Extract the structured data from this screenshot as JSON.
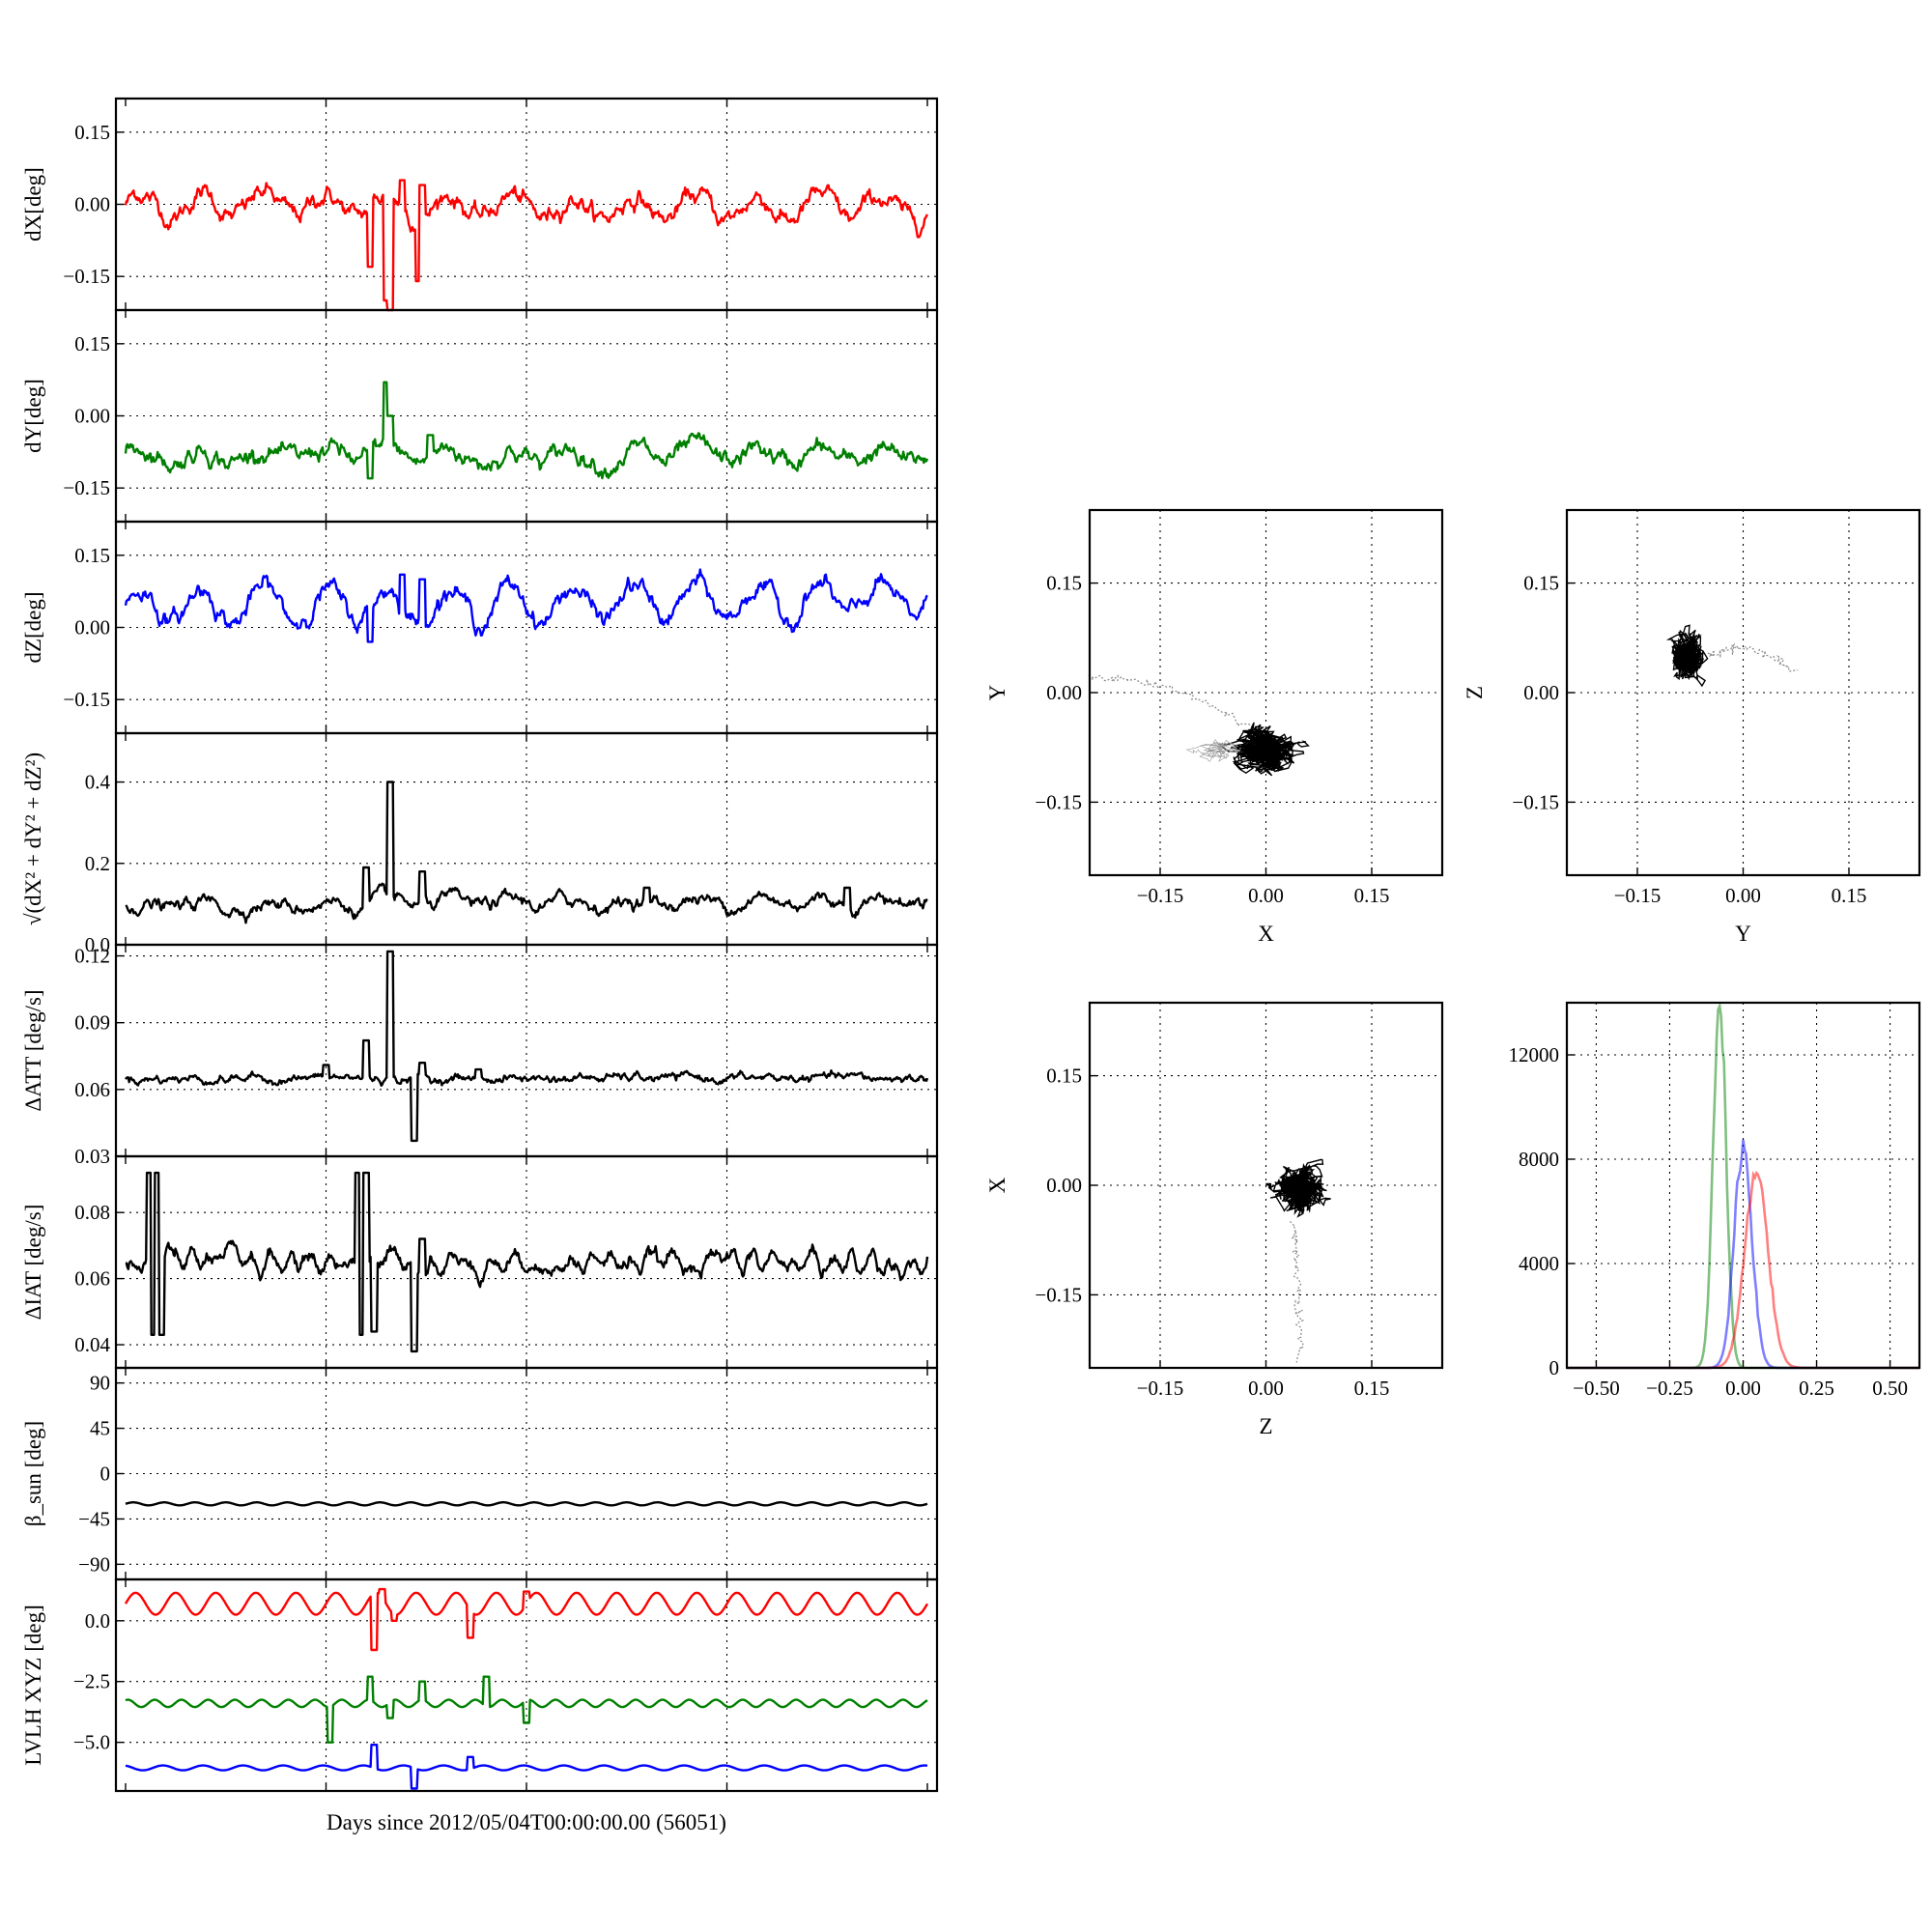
{
  "figure": {
    "background": "#ffffff",
    "colors": {
      "x": "#ff0000",
      "y": "#008000",
      "z": "#0000ff",
      "k": "#000000"
    }
  },
  "chart_data": [
    {
      "id": "ts-dx",
      "type": "line",
      "ylabel": "dX[deg]",
      "ylim": [
        -0.22,
        0.22
      ],
      "yticks": [
        0.15,
        0.0,
        -0.15
      ],
      "ytick_labels": [
        "0.15",
        "0.00",
        "−0.15"
      ],
      "xlim": [
        0,
        1
      ],
      "series": [
        {
          "color": "#ff0000",
          "mean": 0.0,
          "drift": -0.01,
          "wave_amp": 0.025,
          "wave_cycles": 13,
          "noise": 0.006,
          "spikes": [
            [
              0.305,
              -0.13
            ],
            [
              0.325,
              -0.2
            ],
            [
              0.33,
              -0.22
            ],
            [
              0.345,
              0.05
            ],
            [
              0.365,
              -0.16
            ],
            [
              0.37,
              0.04
            ]
          ]
        }
      ]
    },
    {
      "id": "ts-dy",
      "type": "line",
      "ylabel": "dY[deg]",
      "ylim": [
        -0.22,
        0.22
      ],
      "yticks": [
        0.15,
        0.0,
        -0.15
      ],
      "ytick_labels": [
        "0.15",
        "0.00",
        "−0.15"
      ],
      "xlim": [
        0,
        1
      ],
      "series": [
        {
          "color": "#008000",
          "mean": -0.08,
          "drift": -0.005,
          "wave_amp": 0.015,
          "wave_cycles": 13,
          "noise": 0.006,
          "spikes": [
            [
              0.305,
              -0.13
            ],
            [
              0.325,
              0.07
            ],
            [
              0.33,
              0.0
            ],
            [
              0.38,
              -0.04
            ]
          ]
        }
      ]
    },
    {
      "id": "ts-dz",
      "type": "line",
      "ylabel": "dZ[deg]",
      "ylim": [
        -0.22,
        0.22
      ],
      "yticks": [
        0.15,
        0.0,
        -0.15
      ],
      "ytick_labels": [
        "0.15",
        "0.00",
        "−0.15"
      ],
      "xlim": [
        0,
        1
      ],
      "series": [
        {
          "color": "#0000ff",
          "mean": 0.045,
          "drift": 0.01,
          "wave_amp": 0.035,
          "wave_cycles": 13,
          "noise": 0.006,
          "spikes": [
            [
              0.305,
              -0.03
            ],
            [
              0.345,
              0.11
            ],
            [
              0.37,
              0.1
            ]
          ]
        }
      ]
    },
    {
      "id": "ts-norm",
      "type": "line",
      "ylabel": "√(dX² + dY² + dZ²)",
      "ylim": [
        0.0,
        0.52
      ],
      "yticks": [
        0.4,
        0.2,
        0.0
      ],
      "ytick_labels": [
        "0.4",
        "0.2",
        "0.0"
      ],
      "xlim": [
        0,
        1
      ],
      "series": [
        {
          "color": "#000000",
          "mean": 0.095,
          "drift": 0.015,
          "wave_amp": 0.008,
          "wave_cycles": 13,
          "noise": 0.005,
          "spikes": [
            [
              0.3,
              0.19
            ],
            [
              0.33,
              0.4
            ],
            [
              0.37,
              0.18
            ],
            [
              0.65,
              0.14
            ],
            [
              0.9,
              0.14
            ]
          ]
        }
      ]
    },
    {
      "id": "ts-datt",
      "type": "line",
      "ylabel": "ΔATT [deg/s]",
      "ylim": [
        0.03,
        0.125
      ],
      "yticks": [
        0.12,
        0.09,
        0.06,
        0.03
      ],
      "ytick_labels": [
        "0.12",
        "0.09",
        "0.06",
        "0.03"
      ],
      "xlim": [
        0,
        1
      ],
      "series": [
        {
          "color": "#000000",
          "mean": 0.065,
          "drift": 0.0,
          "wave_amp": 0.0,
          "wave_cycles": 0,
          "noise": 0.0006,
          "spikes": [
            [
              0.25,
              0.071
            ],
            [
              0.3,
              0.082
            ],
            [
              0.33,
              0.122
            ],
            [
              0.36,
              0.037
            ],
            [
              0.37,
              0.072
            ],
            [
              0.44,
              0.069
            ]
          ]
        }
      ]
    },
    {
      "id": "ts-diat",
      "type": "line",
      "ylabel": "ΔIAT [deg/s]",
      "ylim": [
        0.033,
        0.097
      ],
      "yticks": [
        0.08,
        0.06,
        0.04
      ],
      "ytick_labels": [
        "0.08",
        "0.06",
        "0.04"
      ],
      "xlim": [
        0,
        1
      ],
      "series": [
        {
          "color": "#000000",
          "mean": 0.065,
          "drift": 0.0,
          "wave_amp": 0.002,
          "wave_cycles": 40,
          "noise": 0.0008,
          "spikes": [
            [
              0.03,
              0.092
            ],
            [
              0.035,
              0.043
            ],
            [
              0.04,
              0.092
            ],
            [
              0.045,
              0.043
            ],
            [
              0.29,
              0.092
            ],
            [
              0.295,
              0.043
            ],
            [
              0.3,
              0.092
            ],
            [
              0.31,
              0.044
            ],
            [
              0.36,
              0.038
            ],
            [
              0.37,
              0.072
            ]
          ]
        }
      ]
    },
    {
      "id": "ts-beta",
      "type": "line",
      "ylabel": "β_sun [deg]",
      "ylim": [
        -105,
        105
      ],
      "yticks": [
        90,
        45,
        0,
        -45,
        -90
      ],
      "ytick_labels": [
        "90",
        "45",
        "0",
        "−45",
        "−90"
      ],
      "xlim": [
        0,
        1
      ],
      "series": [
        {
          "color": "#000000",
          "mean": -30,
          "drift": 0.0,
          "wave_amp": 1.5,
          "wave_cycles": 26,
          "noise": 0.0,
          "spikes": []
        }
      ]
    },
    {
      "id": "ts-lvlh",
      "type": "line",
      "ylabel": "LVLH XYZ [deg]",
      "ylim": [
        -7.0,
        1.7
      ],
      "yticks": [
        0.0,
        -2.5,
        -5.0
      ],
      "ytick_labels": [
        "0.0",
        "−2.5",
        "−5.0"
      ],
      "xlim": [
        0,
        1
      ],
      "xlabel": "Days since 2012/05/04T00:00:00.00 (56051)",
      "series": [
        {
          "color": "#ff0000",
          "mean": 0.7,
          "drift": 0.0,
          "wave_amp": 0.45,
          "wave_cycles": 20,
          "noise": 0.0,
          "spikes": [
            [
              0.31,
              -1.2
            ],
            [
              0.32,
              1.3
            ],
            [
              0.335,
              0.0
            ],
            [
              0.43,
              -0.7
            ],
            [
              0.5,
              1.2
            ]
          ]
        },
        {
          "color": "#008000",
          "mean": -3.4,
          "drift": 0.0,
          "wave_amp": 0.15,
          "wave_cycles": 30,
          "noise": 0.0,
          "spikes": [
            [
              0.255,
              -5.0
            ],
            [
              0.305,
              -2.3
            ],
            [
              0.33,
              -4.0
            ],
            [
              0.37,
              -2.5
            ],
            [
              0.45,
              -2.3
            ],
            [
              0.5,
              -4.2
            ]
          ]
        },
        {
          "color": "#0000ff",
          "mean": -6.05,
          "drift": 0.0,
          "wave_amp": 0.1,
          "wave_cycles": 20,
          "noise": 0.0,
          "spikes": [
            [
              0.31,
              -5.1
            ],
            [
              0.36,
              -6.9
            ],
            [
              0.43,
              -5.6
            ]
          ]
        }
      ]
    },
    {
      "id": "sc-xy",
      "type": "scatter",
      "xlabel": "X",
      "ylabel": "Y",
      "xlim": [
        -0.25,
        0.25
      ],
      "ylim": [
        -0.25,
        0.25
      ],
      "ticks": [
        0.15,
        0.0,
        -0.15
      ],
      "tick_labels": [
        "0.15",
        "0.00",
        "−0.15"
      ],
      "clusters": [
        {
          "center": [
            0.0,
            -0.08
          ],
          "spread": [
            0.04,
            0.025
          ],
          "count": 900,
          "color": "#000000"
        },
        {
          "center": [
            -0.08,
            -0.08
          ],
          "spread": [
            0.04,
            0.02
          ],
          "count": 120,
          "color": "#999999"
        }
      ],
      "trail": {
        "from": [
          -0.25,
          0.02
        ],
        "to": [
          -0.02,
          -0.05
        ],
        "color": "#888888"
      }
    },
    {
      "id": "sc-yz",
      "type": "scatter",
      "xlabel": "Y",
      "ylabel": "Z",
      "xlim": [
        -0.25,
        0.25
      ],
      "ylim": [
        -0.25,
        0.25
      ],
      "ticks": [
        0.15,
        0.0,
        -0.15
      ],
      "tick_labels": [
        "0.15",
        "0.00",
        "−0.15"
      ],
      "clusters": [
        {
          "center": [
            -0.08,
            0.05
          ],
          "spread": [
            0.02,
            0.03
          ],
          "count": 900,
          "color": "#000000"
        }
      ],
      "trail": {
        "from": [
          -0.05,
          0.05
        ],
        "to": [
          0.07,
          0.03
        ],
        "color": "#888888"
      }
    },
    {
      "id": "sc-zx",
      "type": "scatter",
      "xlabel": "Z",
      "ylabel": "X",
      "xlim": [
        -0.25,
        0.25
      ],
      "ylim": [
        -0.25,
        0.25
      ],
      "ticks": [
        0.15,
        0.0,
        -0.15
      ],
      "tick_labels": [
        "0.15",
        "0.00",
        "−0.15"
      ],
      "clusters": [
        {
          "center": [
            0.045,
            -0.005
          ],
          "spread": [
            0.03,
            0.03
          ],
          "count": 900,
          "color": "#000000"
        }
      ],
      "trail": {
        "from": [
          0.04,
          -0.05
        ],
        "to": [
          0.05,
          -0.24
        ],
        "color": "#888888"
      }
    },
    {
      "id": "hist",
      "type": "histogram",
      "xlim": [
        -0.6,
        0.6
      ],
      "ylim": [
        0,
        14000
      ],
      "xticks": [
        -0.5,
        -0.25,
        0.0,
        0.25,
        0.5
      ],
      "xtick_labels": [
        "−0.50",
        "−0.25",
        "0.00",
        "0.25",
        "0.50"
      ],
      "yticks": [
        12000,
        8000,
        4000,
        0
      ],
      "ytick_labels": [
        "12000",
        "8000",
        "4000",
        "0"
      ],
      "series": [
        {
          "color": "#008000",
          "center": -0.08,
          "sigma": 0.022,
          "peak": 14000
        },
        {
          "color": "#0000ff",
          "center": 0.0,
          "sigma": 0.03,
          "peak": 8500
        },
        {
          "color": "#ff0000",
          "center": 0.045,
          "sigma": 0.04,
          "peak": 7400
        }
      ]
    }
  ]
}
